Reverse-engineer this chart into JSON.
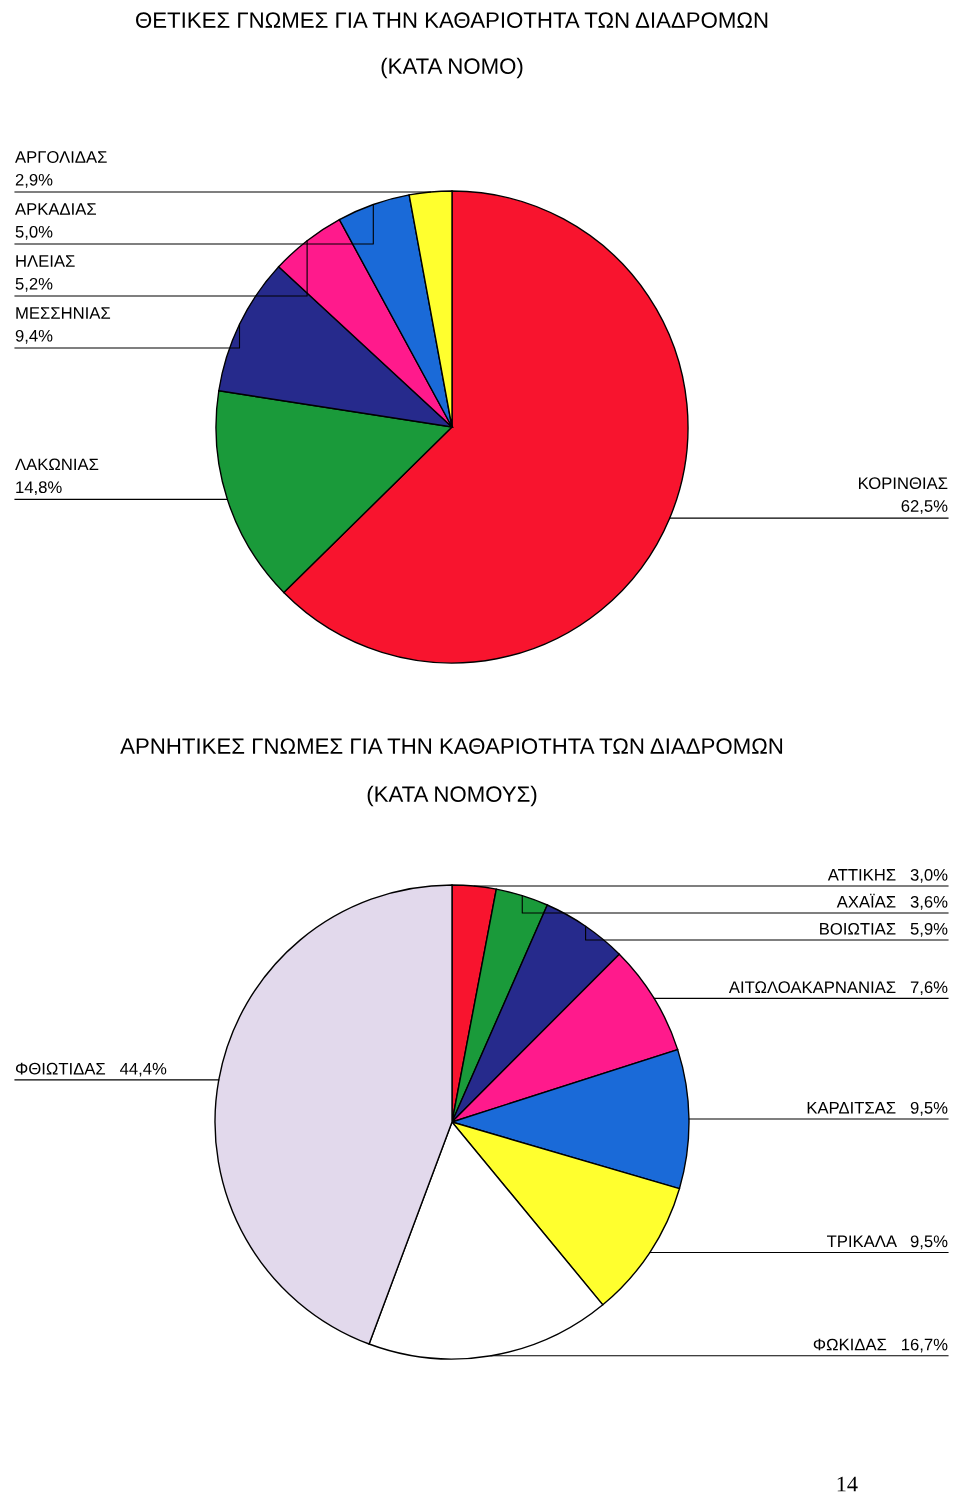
{
  "chart_data": [
    {
      "type": "pie",
      "title": "ΘΕΤΙΚΕΣ ΓΝΩΜΕΣ ΓΙΑ ΤΗΝ ΚΑΘΑΡΙΟΤΗΤΑ ΤΩΝ ΔΙΑΔΡΟΜΩΝ",
      "subtitle": "(ΚΑΤΑ ΝΟΜΟ)",
      "categories": [
        "ΚΟΡΙΝΘΙΑΣ",
        "ΛΑΚΩΝΙΑΣ",
        "ΜΕΣΣΗΝΙΑΣ",
        "ΗΛΕΙΑΣ",
        "ΑΡΚΑΔΙΑΣ",
        "ΑΡΓΟΛΙΔΑΣ"
      ],
      "values": [
        62.5,
        14.8,
        9.4,
        5.2,
        5.0,
        2.9
      ],
      "value_labels": [
        "62,5%",
        "14,8%",
        "9,4%",
        "5,2%",
        "5,0%",
        "2,9%"
      ],
      "colors": [
        "#f8142e",
        "#1a9a3a",
        "#262a8c",
        "#ff1a8c",
        "#1a6ad8",
        "#ffff2e"
      ]
    },
    {
      "type": "pie",
      "title": "ΑΡΝΗΤΙΚΕΣ ΓΝΩΜΕΣ ΓΙΑ ΤΗΝ ΚΑΘΑΡΙΟΤΗΤΑ ΤΩΝ ΔΙΑΔΡΟΜΩΝ",
      "subtitle": "(ΚΑΤΑ ΝΟΜΟΥΣ)",
      "categories": [
        "ΑΤΤΙΚΗΣ",
        "ΑΧΑΪΑΣ",
        "ΒΟΙΩΤΙΑΣ",
        "ΑΙΤΩΛΟΑΚΑΡΝΑΝΙΑΣ",
        "ΚΑΡΔΙΤΣΑΣ",
        "ΤΡΙΚΑΛΑ",
        "ΦΩΚΙΔΑΣ",
        "ΦΘΙΩΤΙΔΑΣ"
      ],
      "values": [
        3.0,
        3.6,
        5.9,
        7.6,
        9.5,
        9.5,
        16.7,
        44.4
      ],
      "value_labels": [
        "3,0%",
        "3,6%",
        "5,9%",
        "7,6%",
        "9,5%",
        "9,5%",
        "16,7%",
        "44,4%"
      ],
      "colors": [
        "#f8142e",
        "#1a9a3a",
        "#262a8c",
        "#ff1a8c",
        "#1a6ad8",
        "#ffff2e",
        "#ffffff",
        "#e2d9ec"
      ],
      "annotations": [
        "14"
      ]
    }
  ]
}
